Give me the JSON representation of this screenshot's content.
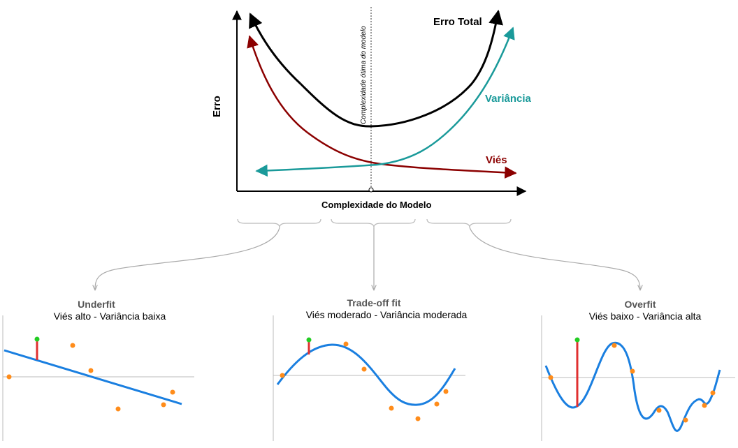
{
  "top_chart": {
    "y_axis_label": "Erro",
    "x_axis_label": "Complexidade do Modelo",
    "optimum_label": "Complexidade ótima do modelo",
    "series": [
      {
        "name": "Erro Total",
        "color": "#000000"
      },
      {
        "name": "Variância",
        "color": "#1a9a9a"
      },
      {
        "name": "Viés",
        "color": "#8b0000"
      }
    ]
  },
  "panels": [
    {
      "title": "Underfit",
      "subtitle": "Viés alto - Variância baixa"
    },
    {
      "title": "Trade-off fit",
      "subtitle": "Viés moderado - Variância moderada"
    },
    {
      "title": "Overfit",
      "subtitle": "Viés baixo - Variância alta"
    }
  ],
  "colors": {
    "fit_curve": "#1a7fe0",
    "data_point": "#ff8c1a",
    "highlight_point": "#22cc22",
    "residual": "#e03030",
    "axis_gray": "#bbbbbb",
    "connector_gray": "#aaaaaa"
  }
}
